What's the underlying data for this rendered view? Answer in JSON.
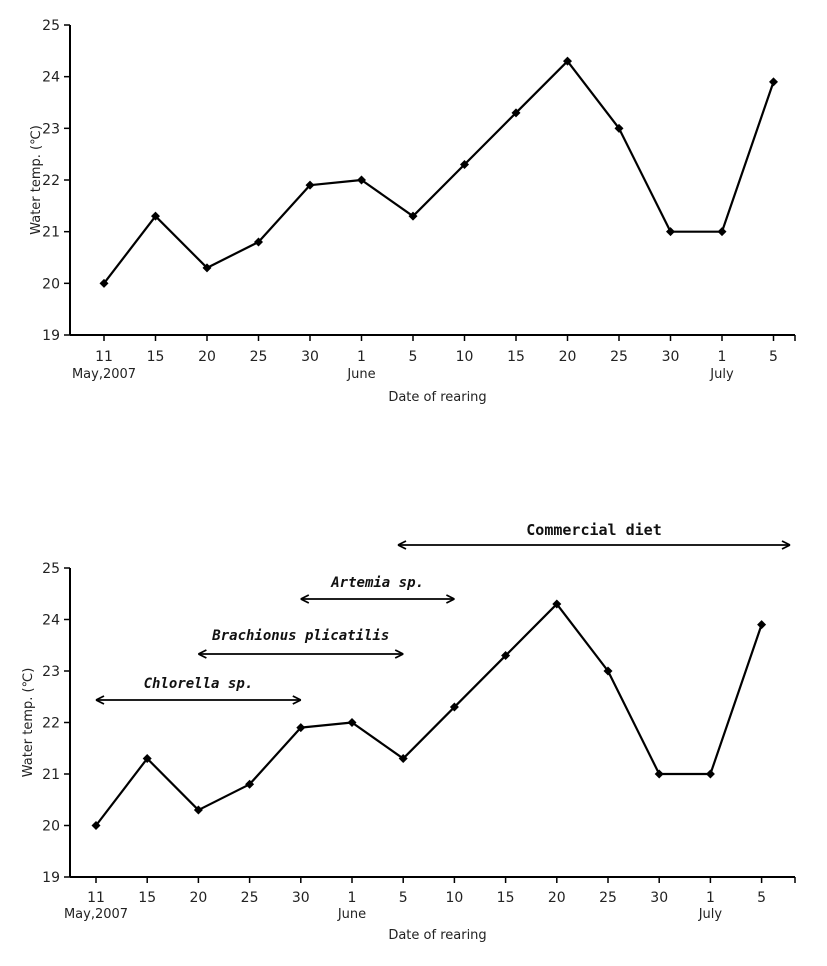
{
  "chart_data": [
    {
      "type": "line",
      "categories": [
        "11",
        "15",
        "20",
        "25",
        "30",
        "1",
        "5",
        "10",
        "15",
        "20",
        "25",
        "30",
        "1",
        "5"
      ],
      "month_labels": [
        {
          "index": 0,
          "text": "May,2007"
        },
        {
          "index": 5,
          "text": "June"
        },
        {
          "index": 12,
          "text": "July"
        }
      ],
      "series": [
        {
          "values": [
            20.0,
            21.3,
            20.3,
            20.8,
            21.9,
            22.0,
            21.3,
            22.3,
            23.3,
            24.3,
            23.0,
            21.0,
            21.0,
            23.9
          ]
        }
      ],
      "xlabel": "Date of rearing",
      "ylabel": "Water temp. (℃)",
      "yticks": [
        19,
        20,
        21,
        22,
        23,
        24,
        25
      ],
      "ylim": [
        19,
        25
      ],
      "grid": false
    },
    {
      "type": "line",
      "categories": [
        "11",
        "15",
        "20",
        "25",
        "30",
        "1",
        "5",
        "10",
        "15",
        "20",
        "25",
        "30",
        "1",
        "5"
      ],
      "month_labels": [
        {
          "index": 0,
          "text": "May,2007"
        },
        {
          "index": 5,
          "text": "June"
        },
        {
          "index": 12,
          "text": "July"
        }
      ],
      "series": [
        {
          "values": [
            20.0,
            21.3,
            20.3,
            20.8,
            21.9,
            22.0,
            21.3,
            22.3,
            23.3,
            24.3,
            23.0,
            21.0,
            21.0,
            23.9
          ]
        }
      ],
      "xlabel": "Date of rearing",
      "ylabel": "Water temp. (℃)",
      "yticks": [
        19,
        20,
        21,
        22,
        23,
        24,
        25
      ],
      "ylim": [
        19,
        25
      ],
      "grid": false,
      "feeding_periods": [
        {
          "label": "Chlorella sp.",
          "start_index": 0,
          "end_index": 4
        },
        {
          "label": "Brachionus plicatilis",
          "start_index": 2,
          "end_index": 6
        },
        {
          "label": "Artemia sp.",
          "start_index": 4,
          "end_index": 7
        },
        {
          "label": "Commercial diet",
          "start_index": 6,
          "end_index": 13
        }
      ]
    }
  ]
}
